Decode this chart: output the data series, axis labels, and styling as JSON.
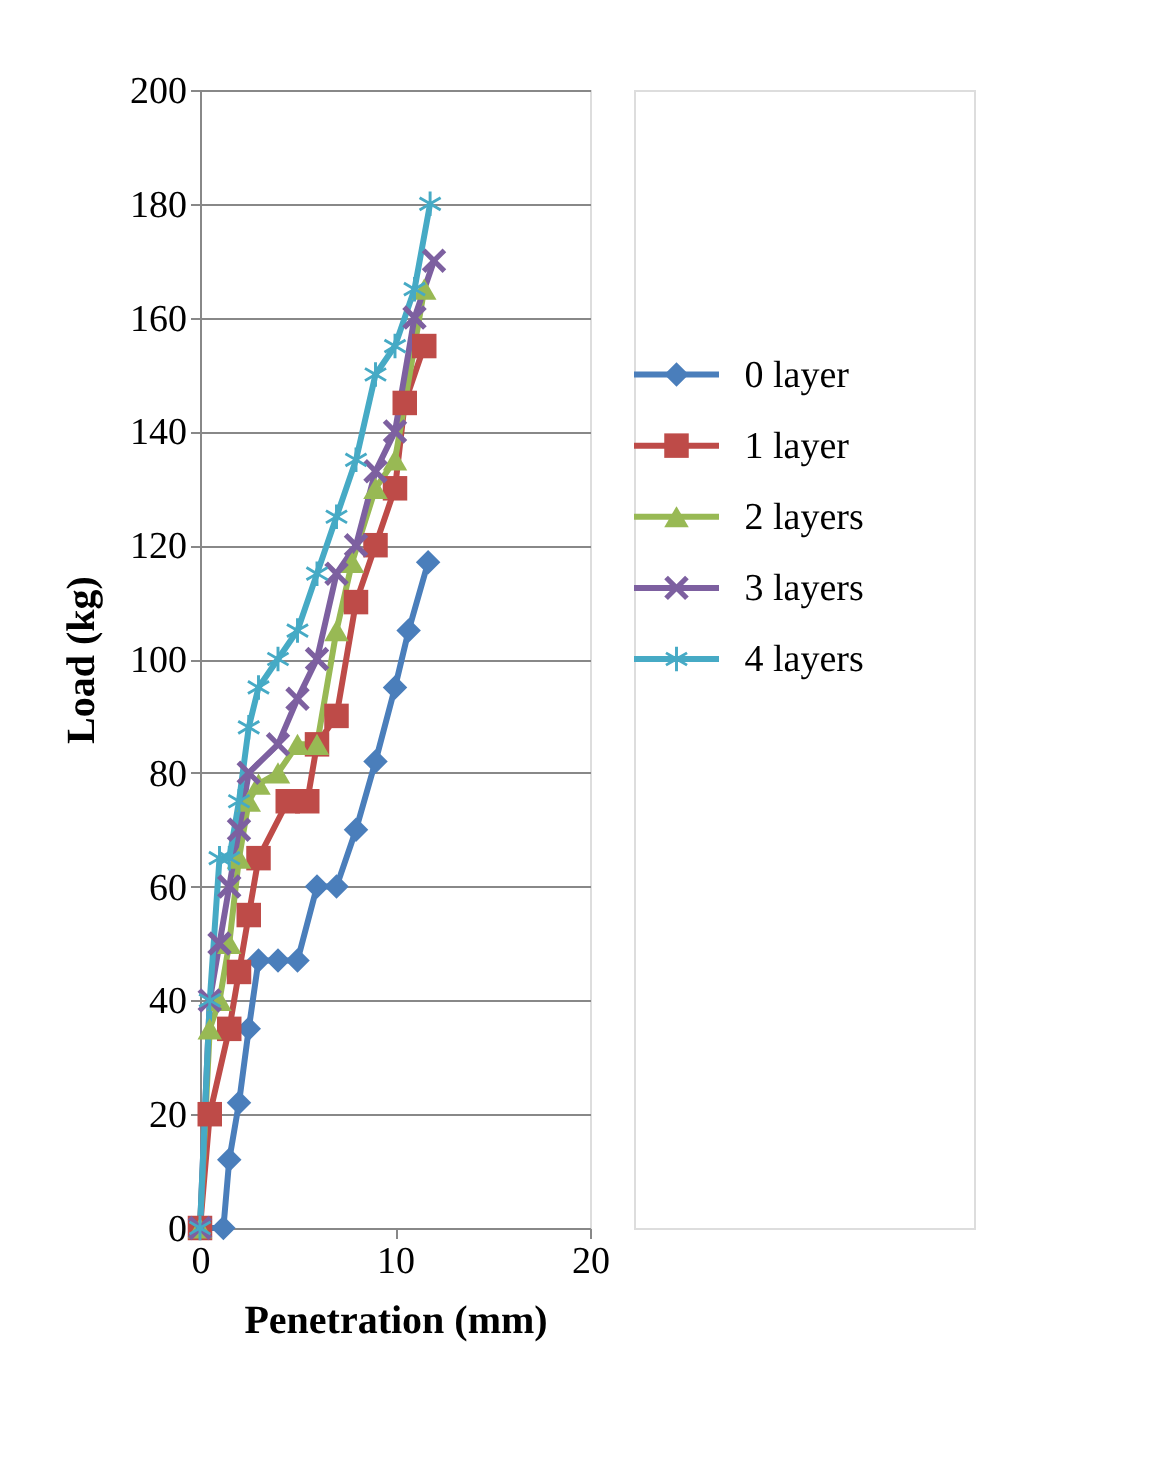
{
  "chart_data": {
    "type": "line",
    "xlabel": "Penetration (mm)",
    "ylabel": "Load (kg)",
    "xlim": [
      0,
      20
    ],
    "xticks": [
      0,
      10,
      20
    ],
    "ylim": [
      0,
      200
    ],
    "yticks": [
      0,
      20,
      40,
      60,
      80,
      100,
      120,
      140,
      160,
      180,
      200
    ],
    "grid": "y",
    "legend": "right",
    "line_style": "solid",
    "series": [
      {
        "name": "0 layer",
        "color": "#4a7ebb",
        "marker": "diamond",
        "x": [
          0,
          1.2,
          1.5,
          2,
          2.5,
          3,
          4,
          5,
          6,
          7,
          8,
          9,
          10,
          10.7,
          11.7
        ],
        "values": [
          0,
          0,
          12,
          22,
          35,
          47,
          47,
          47,
          60,
          60,
          70,
          82,
          95,
          105,
          117
        ]
      },
      {
        "name": "1 layer",
        "color": "#be4b48",
        "marker": "square",
        "x": [
          0,
          0.5,
          1.5,
          2,
          2.5,
          3,
          4.5,
          5.5,
          6,
          7,
          8,
          9,
          10,
          10.5,
          11.5
        ],
        "values": [
          0,
          20,
          35,
          45,
          55,
          65,
          75,
          75,
          85,
          90,
          110,
          120,
          130,
          145,
          155
        ]
      },
      {
        "name": "2 layers",
        "color": "#98b954",
        "marker": "triangle",
        "x": [
          0,
          0.5,
          1,
          1.5,
          2,
          2.5,
          3,
          4,
          5,
          6,
          7,
          7.8,
          9,
          10,
          11.5
        ],
        "values": [
          0,
          35,
          40,
          50,
          65,
          75,
          78,
          80,
          85,
          85,
          105,
          117,
          130,
          135,
          165
        ]
      },
      {
        "name": "3 layers",
        "color": "#7d60a0",
        "marker": "cross",
        "x": [
          0,
          0.5,
          1,
          1.5,
          2,
          2.5,
          4,
          5,
          6,
          7,
          8,
          9,
          10,
          11,
          12
        ],
        "values": [
          0,
          40,
          50,
          60,
          70,
          80,
          85,
          93,
          100,
          115,
          120,
          133,
          140,
          160,
          170
        ]
      },
      {
        "name": "4 layers",
        "color": "#46aac5",
        "marker": "star",
        "x": [
          0,
          0.5,
          1,
          1.5,
          2,
          2.5,
          3,
          4,
          5,
          6,
          7,
          8,
          9,
          10,
          11,
          11.8
        ],
        "values": [
          0,
          40,
          65,
          65,
          75,
          88,
          95,
          100,
          105,
          115,
          125,
          135,
          150,
          155,
          165,
          180
        ]
      }
    ]
  }
}
